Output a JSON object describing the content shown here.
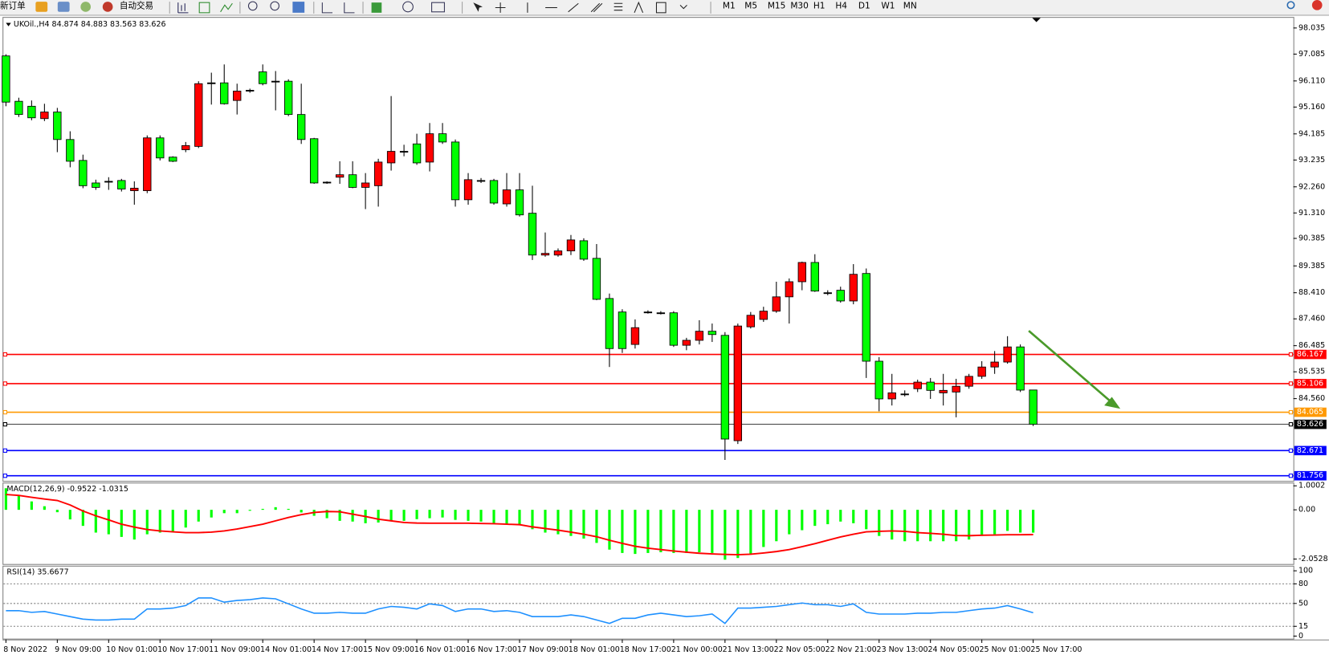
{
  "toolbar": {
    "new_order": "新订单",
    "auto_trading": "自动交易",
    "timeframes": [
      "M1",
      "M5",
      "M15",
      "M30",
      "H1",
      "H4",
      "D1",
      "W1",
      "MN"
    ]
  },
  "chart_data": [
    {
      "type": "candlestick",
      "title": "UKOil.,H4  84.874 84.883 83.563 83.626",
      "categories": [
        "8 Nov 2022",
        null,
        null,
        null,
        "9 Nov 09:00",
        null,
        null,
        null,
        "10 Nov 01:00",
        null,
        null,
        null,
        "10 Nov 17:00",
        null,
        null,
        null,
        "11 Nov 09:00",
        null,
        null,
        null,
        "14 Nov 01:00",
        null,
        null,
        null,
        "14 Nov 17:00",
        null,
        null,
        null,
        "15 Nov 09:00",
        null,
        null,
        null,
        "16 Nov 01:00",
        null,
        null,
        null,
        "16 Nov 17:00",
        null,
        null,
        null,
        "17 Nov 09:00",
        null,
        null,
        null,
        "18 Nov 01:00",
        null,
        null,
        null,
        "18 Nov 17:00",
        null,
        null,
        null,
        "21 Nov 00:00",
        null,
        null,
        null,
        "21 Nov 13:00",
        null,
        null,
        null,
        "22 Nov 05:00",
        null,
        null,
        null,
        "22 Nov 21:00",
        null,
        null,
        null,
        "23 Nov 13:00",
        null,
        null,
        null,
        "24 Nov 05:00",
        null,
        null,
        null,
        "25 Nov 01:00",
        null,
        null,
        null,
        "25 Nov 17:00"
      ],
      "open": [
        97.02,
        95.37,
        95.19,
        94.74,
        94.98,
        93.98,
        93.22,
        92.4,
        92.46,
        92.49,
        92.12,
        92.12,
        94.04,
        93.34,
        93.61,
        93.73,
        96.04,
        96.04,
        95.4,
        95.77,
        96.44,
        96.1,
        96.1,
        94.89,
        94.01,
        92.43,
        92.61,
        92.7,
        92.24,
        92.3,
        93.13,
        93.55,
        93.82,
        93.16,
        94.19,
        93.89,
        91.79,
        92.49,
        92.49,
        91.64,
        92.15,
        91.3,
        89.78,
        89.78,
        89.93,
        90.3,
        89.66,
        88.2,
        87.71,
        86.53,
        87.71,
        87.68,
        87.68,
        86.5,
        86.68,
        87.01,
        86.86,
        83.03,
        87.17,
        87.44,
        87.74,
        88.26,
        88.81,
        89.51,
        88.41,
        88.5,
        88.11,
        89.11,
        85.92,
        84.55,
        84.73,
        84.92,
        85.16,
        84.77,
        84.8,
        85.01,
        85.37,
        85.71,
        85.89,
        86.44,
        84.874
      ],
      "high": [
        97.08,
        95.5,
        95.4,
        95.28,
        95.13,
        94.28,
        93.43,
        92.52,
        92.61,
        92.55,
        92.46,
        94.13,
        94.13,
        93.37,
        93.89,
        96.1,
        96.41,
        96.71,
        96.01,
        95.83,
        96.71,
        96.47,
        96.17,
        96.01,
        94.04,
        92.46,
        93.19,
        93.19,
        92.76,
        93.28,
        95.56,
        93.79,
        94.19,
        94.58,
        94.58,
        93.98,
        92.76,
        92.58,
        92.55,
        92.76,
        92.76,
        92.3,
        90.6,
        90.02,
        90.51,
        90.39,
        90.18,
        88.38,
        87.81,
        87.44,
        87.77,
        87.74,
        87.74,
        86.77,
        87.41,
        87.29,
        86.98,
        87.29,
        87.71,
        87.9,
        88.81,
        88.93,
        89.54,
        89.81,
        88.5,
        88.63,
        89.45,
        89.29,
        86.07,
        85.46,
        84.86,
        85.25,
        85.31,
        85.46,
        85.28,
        85.46,
        85.92,
        86.29,
        86.83,
        86.53,
        84.883
      ],
      "low": [
        95.19,
        94.8,
        94.68,
        94.65,
        93.52,
        92.97,
        92.21,
        92.15,
        92.15,
        92.09,
        91.61,
        92.03,
        93.22,
        93.16,
        93.52,
        93.67,
        95.25,
        95.25,
        94.89,
        95.68,
        95.95,
        95.04,
        94.83,
        93.82,
        92.37,
        92.37,
        92.37,
        92.21,
        91.45,
        91.54,
        92.85,
        93.37,
        93.06,
        92.82,
        93.82,
        91.54,
        91.61,
        92.4,
        91.61,
        91.54,
        91.18,
        89.6,
        89.72,
        89.72,
        89.78,
        89.57,
        88.14,
        85.71,
        86.22,
        86.38,
        87.65,
        87.62,
        86.44,
        86.32,
        86.53,
        86.62,
        82.33,
        82.91,
        87.11,
        87.35,
        87.68,
        87.29,
        88.5,
        88.44,
        88.32,
        88.05,
        87.99,
        85.31,
        84.1,
        84.31,
        84.64,
        84.8,
        84.55,
        84.31,
        83.88,
        84.92,
        85.28,
        85.46,
        85.83,
        84.8,
        83.563
      ],
      "close": [
        95.34,
        94.89,
        94.77,
        94.98,
        93.98,
        93.19,
        92.3,
        92.24,
        92.46,
        92.18,
        92.21,
        94.04,
        93.31,
        93.19,
        93.76,
        96.01,
        96.04,
        95.28,
        95.74,
        95.77,
        96.01,
        96.1,
        94.89,
        93.98,
        92.4,
        92.43,
        92.7,
        92.24,
        92.4,
        93.16,
        93.55,
        93.55,
        93.13,
        94.19,
        93.89,
        91.79,
        92.52,
        92.49,
        91.67,
        92.15,
        91.24,
        89.78,
        89.84,
        89.93,
        90.33,
        89.63,
        88.17,
        86.38,
        86.38,
        87.14,
        87.71,
        87.68,
        86.5,
        86.68,
        87.01,
        86.89,
        83.09,
        87.2,
        87.59,
        87.74,
        88.26,
        88.81,
        89.51,
        88.47,
        88.41,
        88.11,
        89.08,
        85.92,
        84.55,
        84.77,
        84.73,
        85.16,
        84.86,
        84.86,
        85.01,
        85.37,
        85.71,
        85.89,
        86.44,
        84.87,
        83.626
      ],
      "up_color": "#ff0000",
      "down_color": "#00ff00",
      "ylim": [
        81.569,
        98.374
      ],
      "yticks": [
        98.035,
        97.085,
        {
          "value": 96.11,
          "label": "96.110"
        },
        {
          "value": 95.16,
          "label": "95.160"
        },
        94.185,
        93.235,
        {
          "value": 92.26,
          "label": "92.260"
        },
        {
          "value": 91.31,
          "label": "91.310"
        },
        90.385,
        89.385,
        {
          "value": 88.41,
          "label": "88.410"
        },
        {
          "value": 87.46,
          "label": "87.460"
        },
        86.485,
        85.535,
        {
          "value": 84.56,
          "label": "84.560"
        }
      ],
      "levels": [
        {
          "value": 86.167,
          "color": "#ff0000"
        },
        {
          "value": 85.106,
          "color": "#ff0000"
        },
        {
          "value": 84.065,
          "color": "#ff9900"
        },
        {
          "value": 83.626,
          "color": "#000000"
        },
        {
          "value": 82.671,
          "color": "#0000ff"
        },
        {
          "value": 81.756,
          "color": "#0000ff"
        }
      ]
    },
    {
      "type": "macd",
      "title": "MACD(12,26,9) -0.9522 -1.0315",
      "series": [
        {
          "style": "histogram",
          "color": "#00ff00",
          "values": [
            0.9,
            0.6,
            0.35,
            0.15,
            -0.1,
            -0.4,
            -0.67,
            -0.95,
            -1.02,
            -1.13,
            -1.24,
            -1.02,
            -0.95,
            -0.92,
            -0.74,
            -0.49,
            -0.32,
            -0.14,
            -0.14,
            -0.04,
            0.04,
            0.11,
            0.04,
            -0.11,
            -0.25,
            -0.35,
            -0.46,
            -0.49,
            -0.56,
            -0.53,
            -0.46,
            -0.46,
            -0.39,
            -0.35,
            -0.32,
            -0.42,
            -0.46,
            -0.49,
            -0.56,
            -0.6,
            -0.64,
            -0.81,
            -0.95,
            -1.02,
            -1.09,
            -1.2,
            -1.38,
            -1.66,
            -1.8,
            -1.84,
            -1.8,
            -1.77,
            -1.8,
            -1.8,
            -1.77,
            -1.8,
            -2.08,
            -2.01,
            -1.84,
            -1.55,
            -1.31,
            -1.02,
            -0.85,
            -0.67,
            -0.6,
            -0.49,
            -0.56,
            -0.81,
            -1.09,
            -1.24,
            -1.31,
            -1.31,
            -1.31,
            -1.31,
            -1.31,
            -1.24,
            -1.09,
            -1.02,
            -0.88,
            -0.95,
            -0.9522
          ]
        },
        {
          "style": "line",
          "color": "#ff0000",
          "values": [
            0.64,
            0.6,
            0.52,
            0.45,
            0.39,
            0.2,
            -0.05,
            -0.25,
            -0.42,
            -0.6,
            -0.72,
            -0.82,
            -0.88,
            -0.92,
            -0.95,
            -0.95,
            -0.93,
            -0.88,
            -0.8,
            -0.7,
            -0.6,
            -0.46,
            -0.32,
            -0.2,
            -0.11,
            -0.07,
            -0.08,
            -0.18,
            -0.28,
            -0.39,
            -0.46,
            -0.53,
            -0.55,
            -0.56,
            -0.56,
            -0.56,
            -0.56,
            -0.57,
            -0.58,
            -0.6,
            -0.62,
            -0.71,
            -0.78,
            -0.85,
            -0.93,
            -1.02,
            -1.12,
            -1.27,
            -1.4,
            -1.52,
            -1.6,
            -1.66,
            -1.72,
            -1.77,
            -1.81,
            -1.84,
            -1.86,
            -1.87,
            -1.85,
            -1.8,
            -1.74,
            -1.66,
            -1.54,
            -1.41,
            -1.27,
            -1.13,
            -1.02,
            -0.92,
            -0.9,
            -0.88,
            -0.9,
            -0.95,
            -0.98,
            -1.02,
            -1.07,
            -1.08,
            -1.06,
            -1.05,
            -1.04,
            -1.04,
            -1.0315
          ]
        }
      ],
      "ylim": [
        -2.26,
        1.1
      ],
      "yticks": [
        1.0002,
        {
          "value": 0,
          "label": "0.00"
        },
        -2.0528
      ]
    },
    {
      "type": "line",
      "title": "RSI(14) 35.6677",
      "color": "#1e90ff",
      "values": [
        39,
        39,
        36.4,
        37.7,
        33.8,
        29.9,
        26,
        24.7,
        24.7,
        26,
        26,
        41.6,
        41.6,
        42.9,
        46.8,
        58.4,
        58.4,
        51.9,
        54.5,
        55.8,
        58.4,
        57.1,
        49.4,
        41.6,
        35.1,
        35.1,
        36.4,
        35.1,
        35.1,
        41.6,
        45.5,
        44.2,
        41.6,
        49.4,
        46.8,
        37.7,
        41.6,
        41.6,
        37.7,
        39,
        36.4,
        29.9,
        29.9,
        29.9,
        32.5,
        29.9,
        24.7,
        19.5,
        27.3,
        27.3,
        32.5,
        35.1,
        32.5,
        29.9,
        31.2,
        33.8,
        19.5,
        42.9,
        42.9,
        44.2,
        45.5,
        48.1,
        50.6,
        48.1,
        48.1,
        45.5,
        49.4,
        36.4,
        33.8,
        33.8,
        33.8,
        35.1,
        35.1,
        36.4,
        36.4,
        39,
        41.6,
        42.9,
        46.8,
        41.6,
        35.6677
      ],
      "ylim": [
        0,
        100
      ],
      "yticks": [
        100,
        80,
        50,
        15,
        0
      ]
    }
  ]
}
